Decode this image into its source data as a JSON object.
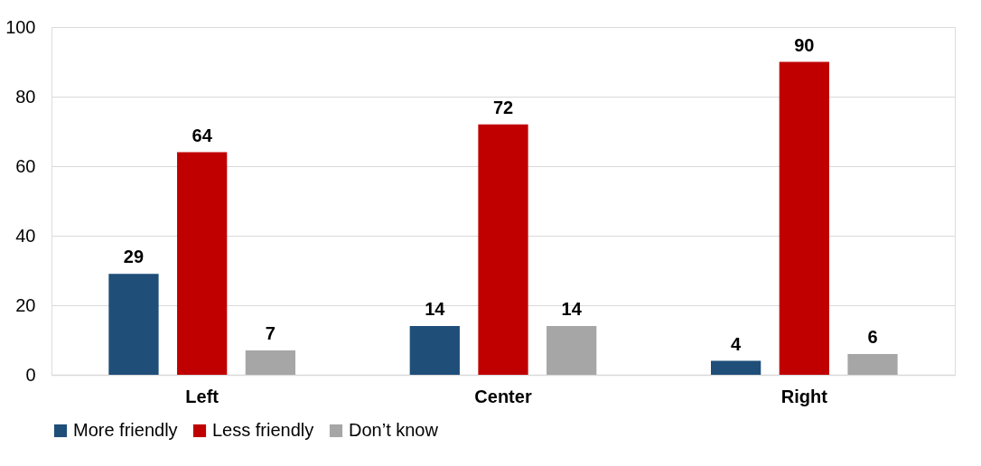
{
  "chart_data": {
    "type": "bar",
    "categories": [
      "Left",
      "Center",
      "Right"
    ],
    "series": [
      {
        "name": "More friendly",
        "color": "#1f4e79",
        "values": [
          29,
          14,
          4
        ]
      },
      {
        "name": "Less friendly",
        "color": "#c00000",
        "values": [
          64,
          72,
          90
        ]
      },
      {
        "name": "Don’t know",
        "color": "#a6a6a6",
        "values": [
          7,
          14,
          6
        ]
      }
    ],
    "ylim": [
      0,
      100
    ],
    "yticks": [
      0,
      20,
      40,
      60,
      80,
      100
    ],
    "grid": "y",
    "legend": "bottom",
    "data_labels": true
  }
}
